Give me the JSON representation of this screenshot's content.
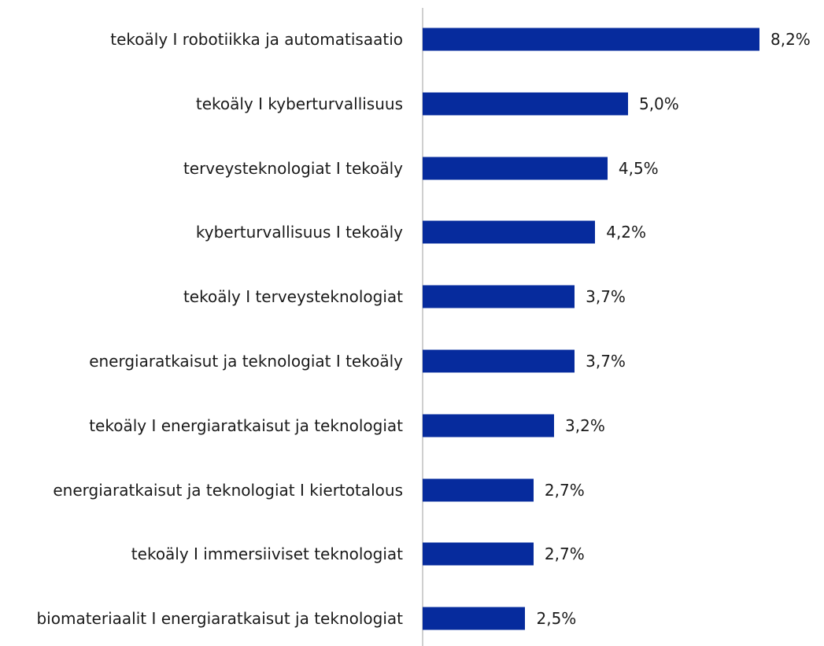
{
  "chart_data": {
    "type": "bar",
    "orientation": "horizontal",
    "color": "#062b9d",
    "categories": [
      "tekoäly I robotiikka ja automatisaatio",
      "tekoäly I kyberturvallisuus",
      "terveysteknologiat I tekoäly",
      "kyberturvallisuus I tekoäly",
      "tekoäly I terveysteknologiat",
      "energiaratkaisut ja teknologiat I tekoäly",
      "tekoäly I energiaratkaisut ja teknologiat",
      "energiaratkaisut ja teknologiat I kiertotalous",
      "tekoäly I immersiiviset teknologiat",
      "biomateriaalit I energiaratkaisut ja teknologiat"
    ],
    "values": [
      8.2,
      5.0,
      4.5,
      4.2,
      3.7,
      3.7,
      3.2,
      2.7,
      2.7,
      2.5
    ],
    "value_labels": [
      "8,2%",
      "5,0%",
      "4,5%",
      "4,2%",
      "3,7%",
      "3,7%",
      "3,2%",
      "2,7%",
      "2,7%",
      "2,5%"
    ]
  }
}
